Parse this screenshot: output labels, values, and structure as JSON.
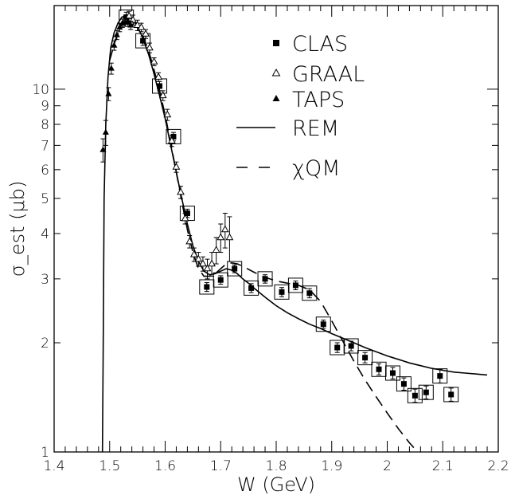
{
  "chart_data": {
    "type": "scatter",
    "xlabel": "W (GeV)",
    "ylabel": "σ_est (μb)",
    "xlim": [
      1.4,
      2.2
    ],
    "ylim": [
      1,
      17
    ],
    "yscale": "log",
    "grid": false,
    "legend_placement": "top-right",
    "x_ticks": [
      {
        "value": 1.4,
        "label": "1.4"
      },
      {
        "value": 1.5,
        "label": "1.5"
      },
      {
        "value": 1.6,
        "label": "1.6"
      },
      {
        "value": 1.7,
        "label": "1.7"
      },
      {
        "value": 1.8,
        "label": "1.8"
      },
      {
        "value": 1.9,
        "label": "1.9"
      },
      {
        "value": 2.0,
        "label": "2"
      },
      {
        "value": 2.1,
        "label": "2.1"
      },
      {
        "value": 2.2,
        "label": "2.2"
      }
    ],
    "y_ticks": [
      {
        "value": 1,
        "label": "1"
      },
      {
        "value": 2,
        "label": "2"
      },
      {
        "value": 3,
        "label": "3"
      },
      {
        "value": 4,
        "label": "4"
      },
      {
        "value": 5,
        "label": "5"
      },
      {
        "value": 6,
        "label": "6"
      },
      {
        "value": 7,
        "label": "7"
      },
      {
        "value": 8,
        "label": "8"
      },
      {
        "value": 9,
        "label": "9"
      },
      {
        "value": 10,
        "label": "10"
      }
    ],
    "legend": [
      {
        "label": "CLAS",
        "marker": "filled-square"
      },
      {
        "label": "GRAAL",
        "marker": "open-triangle"
      },
      {
        "label": "TAPS",
        "marker": "filled-triangle"
      },
      {
        "label": "REM",
        "line": "solid"
      },
      {
        "label": "χQM",
        "line": "dashed"
      }
    ],
    "series": [
      {
        "name": "CLAS",
        "marker": "filled-square",
        "x": [
          1.53,
          1.56,
          1.59,
          1.615,
          1.64,
          1.675,
          1.7,
          1.725,
          1.755,
          1.78,
          1.81,
          1.835,
          1.86,
          1.885,
          1.91,
          1.935,
          1.96,
          1.985,
          2.01,
          2.03,
          2.05,
          2.07,
          2.095,
          2.115
        ],
        "y": [
          15.8,
          13.6,
          10.2,
          7.4,
          4.55,
          2.85,
          2.98,
          3.2,
          2.83,
          3.0,
          2.76,
          2.88,
          2.74,
          2.25,
          1.94,
          1.96,
          1.82,
          1.69,
          1.65,
          1.54,
          1.43,
          1.46,
          1.62,
          1.44
        ],
        "err": [
          0.5,
          0.4,
          0.3,
          0.2,
          0.12,
          0.08,
          0.08,
          0.08,
          0.08,
          0.08,
          0.08,
          0.08,
          0.08,
          0.06,
          0.06,
          0.06,
          0.06,
          0.06,
          0.06,
          0.06,
          0.06,
          0.06,
          0.07,
          0.06
        ]
      },
      {
        "name": "GRAAL",
        "marker": "open-triangle",
        "x": [
          1.528,
          1.535,
          1.542,
          1.55,
          1.557,
          1.565,
          1.572,
          1.58,
          1.588,
          1.596,
          1.604,
          1.612,
          1.62,
          1.628,
          1.636,
          1.644,
          1.652,
          1.66,
          1.668,
          1.676,
          1.684,
          1.692,
          1.7,
          1.708,
          1.716
        ],
        "y": [
          15.4,
          15.9,
          15.5,
          15.0,
          14.8,
          14.2,
          13.0,
          11.9,
          10.8,
          9.6,
          8.5,
          7.2,
          6.1,
          5.2,
          4.4,
          3.8,
          3.5,
          3.4,
          3.3,
          3.2,
          3.3,
          3.6,
          3.9,
          4.1,
          3.9
        ],
        "err": [
          0.5,
          0.5,
          0.5,
          0.5,
          0.4,
          0.4,
          0.4,
          0.3,
          0.3,
          0.3,
          0.3,
          0.25,
          0.2,
          0.2,
          0.15,
          0.15,
          0.15,
          0.15,
          0.15,
          0.2,
          0.25,
          0.3,
          0.35,
          0.45,
          0.55
        ]
      },
      {
        "name": "TAPS",
        "marker": "filled-triangle",
        "x": [
          1.488,
          1.493,
          1.498,
          1.503,
          1.508,
          1.513,
          1.518,
          1.523,
          1.528,
          1.533,
          1.538
        ],
        "y": [
          6.8,
          7.6,
          9.7,
          11.4,
          13.2,
          14.1,
          14.8,
          15.2,
          15.3,
          15.3,
          15.0
        ],
        "err": [
          0.5,
          0.6,
          0.4,
          0.4,
          0.4,
          0.4,
          0.4,
          0.4,
          0.4,
          0.4,
          0.4
        ]
      }
    ],
    "curves": [
      {
        "name": "REM",
        "style": "solid",
        "x": [
          1.487,
          1.4885,
          1.49,
          1.493,
          1.497,
          1.502,
          1.508,
          1.515,
          1.522,
          1.53,
          1.54,
          1.55,
          1.56,
          1.57,
          1.58,
          1.59,
          1.6,
          1.61,
          1.62,
          1.63,
          1.64,
          1.65,
          1.66,
          1.67,
          1.68,
          1.69,
          1.7,
          1.71,
          1.72,
          1.73,
          1.74,
          1.75,
          1.76,
          1.78,
          1.8,
          1.82,
          1.84,
          1.86,
          1.88,
          1.9,
          1.92,
          1.94,
          1.96,
          1.98,
          2.0,
          2.02,
          2.04,
          2.06,
          2.08,
          2.1,
          2.12,
          2.14,
          2.16,
          2.18
        ],
        "y": [
          1.0,
          2.0,
          5.0,
          8.0,
          10.8,
          13.0,
          14.3,
          15.2,
          15.8,
          15.9,
          15.6,
          14.9,
          13.8,
          12.5,
          11.0,
          9.6,
          8.3,
          7.0,
          5.9,
          5.0,
          4.25,
          3.7,
          3.35,
          3.15,
          3.08,
          3.1,
          3.15,
          3.2,
          3.17,
          3.1,
          3.0,
          2.92,
          2.83,
          2.67,
          2.53,
          2.42,
          2.33,
          2.25,
          2.19,
          2.12,
          2.06,
          2.0,
          1.94,
          1.89,
          1.84,
          1.8,
          1.76,
          1.73,
          1.7,
          1.68,
          1.66,
          1.65,
          1.64,
          1.63
        ]
      },
      {
        "name": "χQM",
        "style": "dashed",
        "x": [
          1.5,
          1.51,
          1.52,
          1.53,
          1.54,
          1.55,
          1.56,
          1.57,
          1.58,
          1.59,
          1.6,
          1.61,
          1.62,
          1.63,
          1.64,
          1.65,
          1.66,
          1.67,
          1.68,
          1.69,
          1.7,
          1.71,
          1.72,
          1.73,
          1.74,
          1.76,
          1.78,
          1.8,
          1.82,
          1.84,
          1.86,
          1.88,
          1.9,
          1.92,
          1.94,
          1.96,
          1.98,
          2.0,
          2.02,
          2.04,
          2.06
        ],
        "y": [
          12.0,
          13.6,
          14.9,
          15.6,
          15.6,
          15.0,
          14.0,
          12.8,
          11.3,
          9.9,
          8.5,
          7.1,
          5.9,
          4.9,
          4.1,
          3.55,
          3.2,
          3.05,
          3.05,
          3.1,
          3.2,
          3.3,
          3.32,
          3.3,
          3.25,
          3.13,
          3.03,
          2.96,
          2.92,
          2.88,
          2.8,
          2.6,
          2.3,
          2.02,
          1.78,
          1.58,
          1.42,
          1.28,
          1.16,
          1.06,
          0.98
        ]
      }
    ]
  }
}
